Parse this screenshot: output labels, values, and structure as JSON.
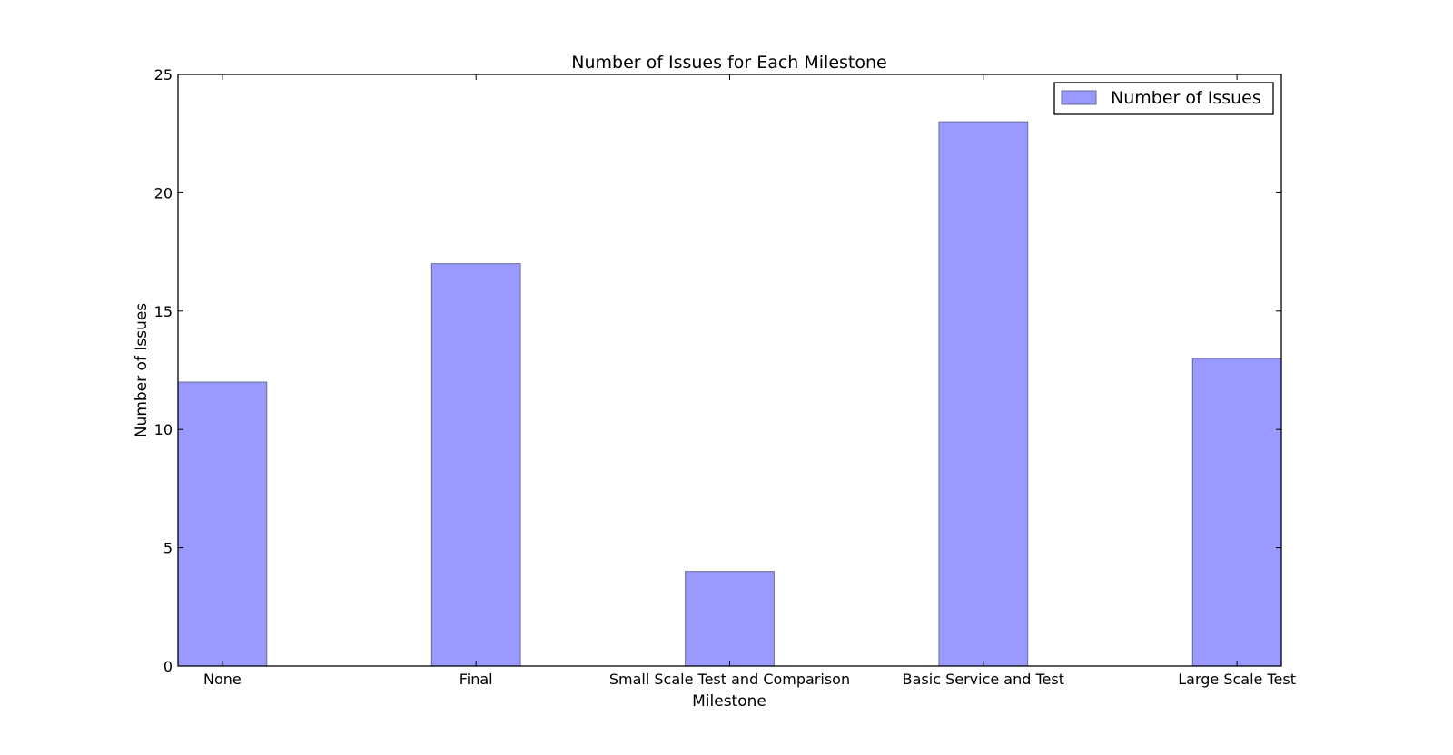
{
  "chart_data": {
    "type": "bar",
    "title": "Number of Issues for Each Milestone",
    "xlabel": "Milestone",
    "ylabel": "Number of Issues",
    "categories": [
      "None",
      "Final",
      "Small Scale Test and Comparison",
      "Basic Service and Test",
      "Large Scale Test"
    ],
    "series": [
      {
        "name": "Number of Issues",
        "values": [
          12,
          17,
          4,
          23,
          13
        ]
      }
    ],
    "ylim": [
      0,
      25
    ],
    "yticks": [
      0,
      5,
      10,
      15,
      20,
      25
    ],
    "grid": false,
    "legend": "top-right",
    "colors": {
      "bar_fill": "#9999ff",
      "bar_edge": "#6b6b99",
      "axes": "#000000"
    }
  }
}
